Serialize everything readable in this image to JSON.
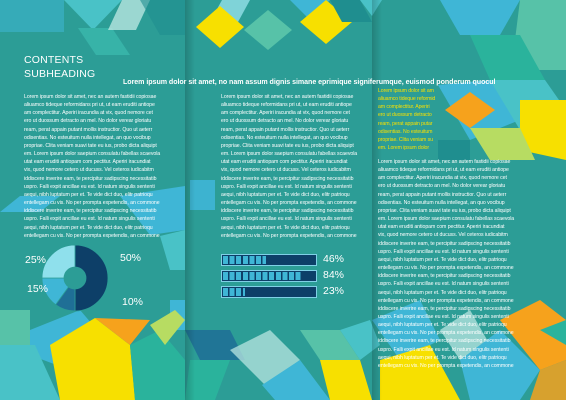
{
  "brochure": {
    "title_line1": "CONTENTS",
    "title_line2": "SUBHEADING",
    "headline": "Lorem ipsum dolor sit amet, no nam assum dignis simane eprimique signiferumque, euismod ponderum quocul",
    "colors": {
      "background": "#2c9d96",
      "navy": "#0d3f68",
      "yellow": "#f7e000",
      "sky": "#3fb6d6",
      "orange": "#f6a21c"
    }
  },
  "columns": {
    "left": [
      "Lorem ipsum dolor sit amet, nec an autem fastidii copiosae",
      "aliuamco tideque reformidans pri ut, ut eam eruditi antiope",
      "am complectitur. Aperiri iracundia at vix, quod nemore cet",
      "ero ut duossum detracto an mel. No dolor verear gloriatu",
      "ream, perat appain putant mollis instructior. Quo ut aeterr",
      "odisentias. No esteuitum nulla intellegat, an quo vocibup",
      "propriae. Clita veniam suavi tate eu ius, probo dicta aliquipt",
      "em. Lorem ipsum dolor saepium consulatu fabellas scaevola",
      "utat eam eruditi antiopam com pectitur. Aperiri iracundiat",
      "vix, quod nemore cetero ut ducuss. Vel ceteros iudicabitm",
      "iddiscere inverire eam, te percipitur sadipscing necessitatib",
      "uspro. Falli expit ancillae eu est. Id natum singulis sententi",
      "aequi, nibh luptatum per et. Te vide dict duo, elitr patrioqu",
      "entellegam cu vis. No per prompta expetendis, an commone",
      "iddiscere inverire eam, te percipitur sadipscing necessitatib",
      "uspro. Falli expit ancillae eu est. Id natum singulis sententi",
      "aequi, nibh luptatum per et. Te vide dict duo, elitr patrioqu",
      "entellegam cu vis. No per prompta expetendis, an commone"
    ],
    "middle": [
      "Lorem ipsum dolor sit amet, nec an autem fastidii copiosae",
      "aliuamco tideque reformidans pri ut, ut eam eruditi antiope",
      "am complectitur. Aperiri iracundia at vix, quod nemore cet",
      "ero ut duossum detracto an mel. No dolor verear gloriatu",
      "ream, perat appain putant mollis instructior. Quo ut aeterr",
      "odisentias. No esteuitum nulla intellegat, an quo vocibup",
      "propriae. Clita veniam suavi tate eu ius, probo dicta aliquipt",
      "em. Lorem ipsum dolor saepium consulatu fabellas scaevola",
      "utat eam eruditi antiopam com pectitur. Aperiri iracundiat",
      "vix, quod nemore cetero ut ducuss. Vel ceteros iudicabitm",
      "iddiscere inverire eam, te percipitur sadipscing necessitatib",
      "uspro. Falli expit ancillae eu est. Id natum singulis sententi",
      "aequi, nibh luptatum per et. Te vide dict duo, elitr patrioqu",
      "entellegam cu vis. No per prompta expetendis, an commone",
      "iddiscere inverire eam, te percipitur sadipscing necessitatib",
      "uspro. Falli expit ancillae eu est. Id natum singulis sententi",
      "aequi, nibh luptatum per et. Te vide dict duo, elitr patrioqu",
      "entellegam cu vis. No per prompta expetendis, an commone"
    ],
    "right_yellow": [
      "Lorem ipsum dolor sit am",
      "aliuamco tideque reformid",
      "am complectitur. Aperiri",
      "ero ut duossum detracto",
      "ream, perat appain putar",
      "odisentias. No esteuitum",
      "propriae. Clita veniam su",
      "em. Lorem ipsum dolor"
    ],
    "right": [
      "Lorem ipsum dolor sit amet, nec an autem fastidii copiosae",
      "aliuamco tideque reformidans pri ut, ut eam eruditi antiope",
      "am complectitur. Aperiri iracundia at vix, quod nemore cet",
      "ero ut duossum detracto an mel. No dolor verear gloriatu",
      "ream, perat appain putant mollis instructior. Quo ut aeterr",
      "odisentias. No esteuitum nulla intellegat, an quo vocibup",
      "propriae. Clita veniam suavi tate eu ius, probo dicta aliquipt",
      "em. Lorem ipsum dolor saepium consulatu fabellas scaevola",
      "utat eam eruditi antiopam com pectitur. Aperiri iracundiat",
      "vix, quod nemore cetero ut ducuss. Vel ceteros iudicabitm",
      "iddiscere inverire eam, te percipitur sadipscing necessitatib",
      "uspro. Falli expit ancillae eu est. Id natum singulis sententi",
      "aequi, nibh luptatum per et. Te vide dict duo, elitr patrioqu",
      "entellegam cu vis. No per prompta expetendis, an commone",
      "iddiscere inverire eam, te percipitur sadipscing necessitatib",
      "uspro. Falli expit ancillae eu est. Id natum singulis sententi",
      "aequi, nibh luptatum per et. Te vide dict duo, elitr patrioqu",
      "entellegam cu vis. No per prompta expetendis, an commone",
      "iddiscere inverire eam, te percipitur sadipscing necessitatib",
      "uspro. Falli expit ancillae eu est. Id natum singulis sententi",
      "aequi, nibh luptatum per et. Te vide dict duo, elitr patrioqu",
      "entellegam cu vis. No per prompta expetendis, an commone",
      "iddiscere inverire eam, te percipitur sadipscing necessitatib",
      "uspro. Falli expit ancillae eu est. Id natum singulis sententi",
      "aequi, nibh luptatum per et. Te vide dict duo, elitr patrioqu",
      "entellegam cu vis. No per prompta expetendis, an commone"
    ]
  },
  "chart_data": [
    {
      "type": "pie",
      "labels": [
        "50%",
        "10%",
        "15%",
        "25%"
      ],
      "values": [
        50,
        10,
        15,
        25
      ],
      "colors": [
        "#0d3f68",
        "#1f6f96",
        "#3fb6d6",
        "#8fe0ec"
      ]
    },
    {
      "type": "bar",
      "orientation": "horizontal",
      "values": [
        46,
        84,
        23
      ],
      "value_labels": [
        "46%",
        "84%",
        "23%"
      ],
      "xlim": [
        0,
        100
      ]
    }
  ]
}
